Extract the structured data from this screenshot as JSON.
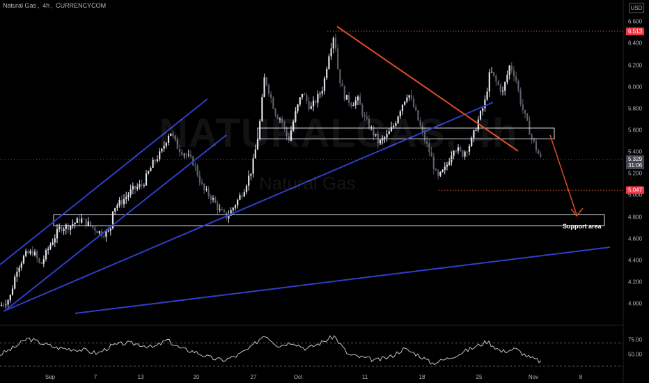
{
  "header": {
    "symbol": "Natural Gas",
    "interval": "4h",
    "source": "CURRENCYCOM"
  },
  "currency": "USD",
  "watermark": {
    "ticker": "NATURALGAS, 4h",
    "name": "Natural Gas"
  },
  "colors": {
    "up": "#e0e3eb",
    "down": "#5d606b",
    "trendline": "#2e3fc7",
    "resistance_line": "#e04a2a",
    "level": "#e06030",
    "badge_price": "#434651",
    "badge_level": "#f23645",
    "rsi": "#c3c6d0"
  },
  "chart_data": [
    {
      "type": "candlestick",
      "symbol": "Natural Gas",
      "interval": "4h",
      "ylim": [
        3.86,
        6.66
      ],
      "y_ticks": [
        "6.600",
        "6.400",
        "6.200",
        "6.000",
        "5.800",
        "5.600",
        "5.400",
        "5.200",
        "5.000",
        "4.800",
        "4.600",
        "4.400",
        "4.200",
        "4.000"
      ],
      "x_ticks": [
        "Sep",
        "7",
        "13",
        "20",
        "27",
        "Oct",
        "11",
        "18",
        "25",
        "Nov",
        "8"
      ],
      "price_label": {
        "value": "5.329",
        "countdown": "31:06"
      },
      "level_labels": [
        "6.513",
        "5.047"
      ],
      "close_path": [
        [
          0,
          3.98
        ],
        [
          14,
          4.05
        ],
        [
          24,
          4.32
        ],
        [
          36,
          4.45
        ],
        [
          48,
          4.48
        ],
        [
          58,
          4.35
        ],
        [
          70,
          4.52
        ],
        [
          86,
          4.7
        ],
        [
          100,
          4.72
        ],
        [
          116,
          4.78
        ],
        [
          130,
          4.72
        ],
        [
          145,
          4.65
        ],
        [
          158,
          4.66
        ],
        [
          162,
          4.88
        ],
        [
          176,
          4.95
        ],
        [
          190,
          5.05
        ],
        [
          205,
          5.1
        ],
        [
          220,
          5.3
        ],
        [
          232,
          5.4
        ],
        [
          244,
          5.6
        ],
        [
          254,
          5.45
        ],
        [
          266,
          5.38
        ],
        [
          278,
          5.3
        ],
        [
          292,
          5.05
        ],
        [
          304,
          4.98
        ],
        [
          316,
          4.85
        ],
        [
          326,
          4.8
        ],
        [
          338,
          4.92
        ],
        [
          350,
          5.05
        ],
        [
          362,
          5.25
        ],
        [
          372,
          5.6
        ],
        [
          380,
          6.1
        ],
        [
          388,
          5.92
        ],
        [
          396,
          5.75
        ],
        [
          404,
          5.7
        ],
        [
          414,
          5.5
        ],
        [
          424,
          5.75
        ],
        [
          434,
          5.95
        ],
        [
          446,
          5.8
        ],
        [
          456,
          5.9
        ],
        [
          464,
          6.0
        ],
        [
          472,
          6.3
        ],
        [
          480,
          6.5
        ],
        [
          486,
          6.12
        ],
        [
          494,
          5.92
        ],
        [
          504,
          5.85
        ],
        [
          514,
          5.88
        ],
        [
          524,
          5.7
        ],
        [
          534,
          5.6
        ],
        [
          544,
          5.48
        ],
        [
          556,
          5.55
        ],
        [
          566,
          5.65
        ],
        [
          576,
          5.82
        ],
        [
          586,
          5.95
        ],
        [
          596,
          5.78
        ],
        [
          606,
          5.58
        ],
        [
          618,
          5.38
        ],
        [
          628,
          5.15
        ],
        [
          640,
          5.25
        ],
        [
          652,
          5.45
        ],
        [
          664,
          5.38
        ],
        [
          676,
          5.48
        ],
        [
          686,
          5.68
        ],
        [
          696,
          5.85
        ],
        [
          704,
          6.15
        ],
        [
          712,
          6.05
        ],
        [
          722,
          5.95
        ],
        [
          732,
          6.2
        ],
        [
          740,
          6.1
        ],
        [
          748,
          5.85
        ],
        [
          756,
          5.68
        ],
        [
          764,
          5.52
        ],
        [
          772,
          5.4
        ],
        [
          777,
          5.33
        ]
      ],
      "drawings": {
        "support_area_label": "Support area",
        "horizontal_levels": [
          6.513,
          5.047
        ],
        "zones": [
          {
            "from": 4.72,
            "to": 4.82
          },
          {
            "from": 5.52,
            "to": 5.62
          }
        ]
      }
    },
    {
      "type": "line",
      "name": "RSI",
      "ylim": [
        25,
        90
      ],
      "y_ticks": [
        "75.00",
        "50.00"
      ],
      "bands": [
        70,
        30
      ],
      "values_path": [
        [
          0,
          50
        ],
        [
          20,
          62
        ],
        [
          40,
          78
        ],
        [
          60,
          70
        ],
        [
          80,
          62
        ],
        [
          100,
          60
        ],
        [
          120,
          58
        ],
        [
          140,
          52
        ],
        [
          160,
          65
        ],
        [
          180,
          70
        ],
        [
          200,
          68
        ],
        [
          220,
          62
        ],
        [
          240,
          75
        ],
        [
          260,
          60
        ],
        [
          280,
          55
        ],
        [
          300,
          45
        ],
        [
          320,
          40
        ],
        [
          340,
          48
        ],
        [
          360,
          62
        ],
        [
          380,
          85
        ],
        [
          400,
          65
        ],
        [
          420,
          72
        ],
        [
          440,
          60
        ],
        [
          460,
          70
        ],
        [
          480,
          82
        ],
        [
          500,
          50
        ],
        [
          520,
          45
        ],
        [
          540,
          40
        ],
        [
          560,
          46
        ],
        [
          580,
          60
        ],
        [
          600,
          50
        ],
        [
          620,
          35
        ],
        [
          640,
          42
        ],
        [
          660,
          52
        ],
        [
          680,
          62
        ],
        [
          700,
          73
        ],
        [
          720,
          55
        ],
        [
          740,
          60
        ],
        [
          760,
          45
        ],
        [
          777,
          38
        ]
      ]
    }
  ]
}
